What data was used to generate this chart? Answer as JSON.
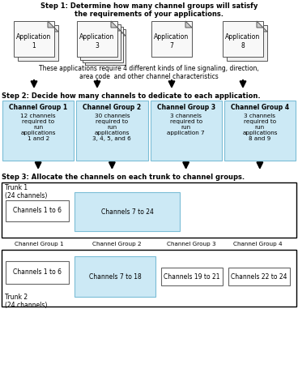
{
  "title_step1": "Step 1: Determine how many channel groups will satisfy\nthe requirements of your applications.",
  "title_step2": "Step 2: Decide how many channels to dedicate to each application.",
  "title_step3": "Step 3: Allocate the channels on each trunk to channel groups.",
  "app_labels": [
    "Application\n1",
    "Application\n3",
    "Application\n7",
    "Application\n8"
  ],
  "app_stack_counts": [
    2,
    4,
    1,
    2
  ],
  "caption": "These applications require 4 different kinds of line signaling, direction,\narea code  and other channel characteristics",
  "group_labels": [
    "Channel Group 1",
    "Channel Group 2",
    "Channel Group 3",
    "Channel Group 4"
  ],
  "group_texts": [
    "12 channels\nrequired to\nrun\napplications\n1 and 2",
    "30 channels\nrequired to\nrun\napplications\n3, 4, 5, and 6",
    "3 channels\nrequired to\nrun\napplication 7",
    "3 channels\nrequired to\nrun\napplications\n8 and 9"
  ],
  "group_bg": "#cce9f5",
  "group_border": "#7bbdd6",
  "trunk1_label": "Trunk 1\n(24 channels)",
  "trunk2_label": "Trunk 2\n(24 channels)",
  "trunk1_boxes": [
    {
      "label": "Channels 1 to 6",
      "bg": "#ffffff",
      "border": "#666666"
    },
    {
      "label": "Channels 7 to 24",
      "bg": "#cce9f5",
      "border": "#7bbdd6"
    }
  ],
  "trunk2_col_labels": [
    "Channel Group 1",
    "Channel Group 2",
    "Channel Group 3",
    "Channel Group 4"
  ],
  "trunk2_boxes": [
    {
      "label": "Channels 1 to 6",
      "bg": "#ffffff",
      "border": "#666666"
    },
    {
      "label": "Channels 7 to 18",
      "bg": "#cce9f5",
      "border": "#7bbdd6"
    },
    {
      "label": "Channels 19 to 21",
      "bg": "#ffffff",
      "border": "#666666"
    },
    {
      "label": "Channels 22 to 24",
      "bg": "#ffffff",
      "border": "#666666"
    }
  ],
  "fig_w": 3.68,
  "fig_h": 4.76,
  "dpi": 100
}
